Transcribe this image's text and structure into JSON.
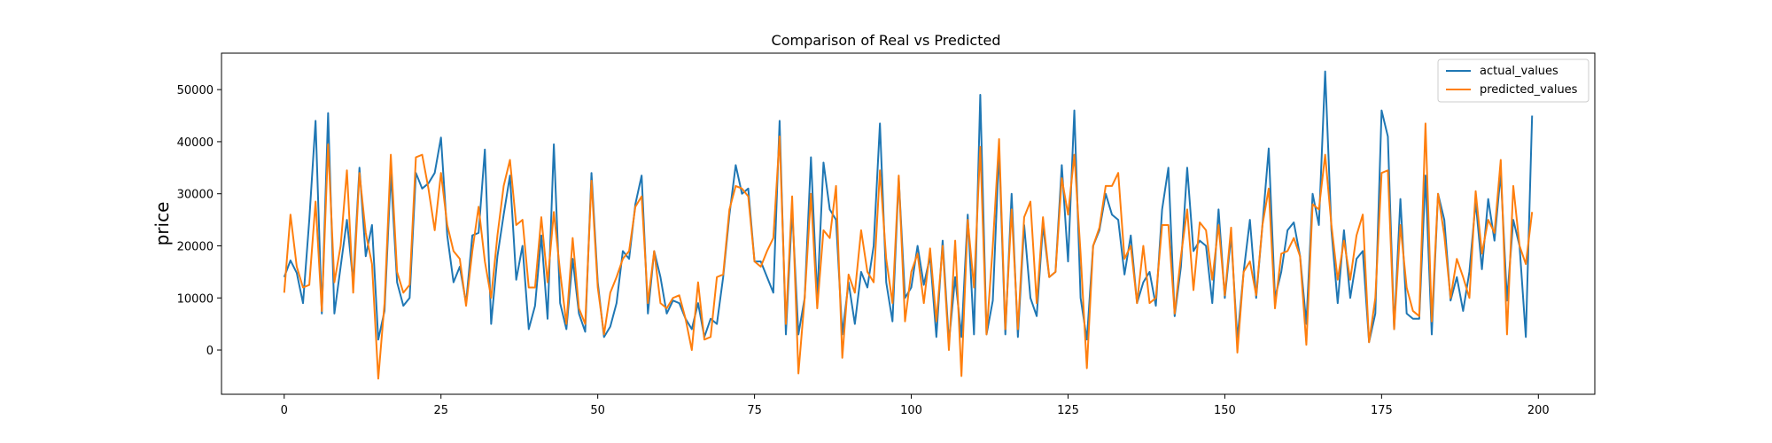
{
  "chart_data": {
    "type": "line",
    "title": "Comparison of Real vs Predicted",
    "xlabel": "",
    "ylabel": "price",
    "xlim": [
      -10,
      209
    ],
    "ylim": [
      -8500,
      57000
    ],
    "xticks": [
      0,
      25,
      50,
      75,
      100,
      125,
      150,
      175,
      200
    ],
    "yticks": [
      0,
      10000,
      20000,
      30000,
      40000,
      50000
    ],
    "grid": false,
    "legend_position": "top-right",
    "series": [
      {
        "name": "actual_values",
        "color": "#1f77b4",
        "values": [
          14000,
          17200,
          14800,
          9000,
          25000,
          44000,
          7000,
          45500,
          7000,
          16000,
          25000,
          13000,
          35000,
          18000,
          24000,
          2000,
          7500,
          34000,
          13000,
          8500,
          10000,
          34000,
          31000,
          32000,
          34000,
          40800,
          22000,
          13000,
          16000,
          9000,
          22000,
          22500,
          38500,
          5000,
          18000,
          26000,
          33500,
          13500,
          20000,
          4000,
          8500,
          22000,
          6000,
          39500,
          9000,
          4000,
          17500,
          7000,
          3500,
          34000,
          13000,
          2500,
          4500,
          9000,
          19000,
          17500,
          28000,
          33500,
          7000,
          19000,
          14000,
          7000,
          9500,
          9000,
          6000,
          4000,
          9000,
          2500,
          6000,
          5000,
          14000,
          26000,
          35500,
          30000,
          31000,
          17000,
          17000,
          14000,
          11000,
          44000,
          3000,
          27000,
          3000,
          10000,
          37000,
          10000,
          36000,
          27000,
          25000,
          3000,
          13000,
          5000,
          15000,
          12000,
          20000,
          43500,
          13000,
          5500,
          33000,
          10000,
          12000,
          20000,
          12500,
          18000,
          2500,
          21000,
          1500,
          14000,
          2500,
          26000,
          3000,
          49000,
          3000,
          9500,
          38500,
          3000,
          30000,
          2500,
          24000,
          10000,
          6500,
          24000,
          14000,
          15000,
          35500,
          17000,
          46000,
          10000,
          2000,
          20000,
          23000,
          30000,
          26000,
          25000,
          14500,
          22000,
          9000,
          13000,
          15000,
          8500,
          27000,
          35000,
          6500,
          16000,
          35000,
          19000,
          21000,
          20000,
          9000,
          27000,
          10000,
          22000,
          2000,
          15000,
          25000,
          10000,
          24000,
          38700,
          10000,
          15000,
          23000,
          24500,
          18000,
          5000,
          30000,
          24000,
          53500,
          23000,
          9000,
          23000,
          10000,
          17500,
          19000,
          1500,
          7000,
          46000,
          41000,
          4000,
          29000,
          7000,
          6000,
          6000,
          33500,
          3000,
          30000,
          25000,
          9500,
          14000,
          7500,
          15000,
          28500,
          15500,
          29000,
          21000,
          34000,
          9500,
          25000,
          20000,
          2500,
          45000
        ],
        "x_start": 0
      },
      {
        "name": "predicted_values",
        "color": "#ff7f0e",
        "values": [
          11000,
          26000,
          16000,
          12000,
          12500,
          28500,
          7500,
          39500,
          13000,
          20000,
          34500,
          11000,
          34000,
          22500,
          16500,
          -5500,
          9000,
          37500,
          15000,
          11000,
          12500,
          37000,
          37500,
          31000,
          23000,
          34000,
          24000,
          19000,
          17500,
          8500,
          19000,
          27500,
          17000,
          10000,
          22000,
          31500,
          36500,
          24000,
          25000,
          12000,
          12000,
          25500,
          13000,
          26500,
          15000,
          5000,
          21500,
          8000,
          5000,
          32500,
          12000,
          3000,
          11000,
          14000,
          17500,
          19000,
          27500,
          29500,
          9000,
          19000,
          9000,
          8000,
          10000,
          10500,
          6000,
          0,
          13000,
          2000,
          2500,
          14000,
          14500,
          27000,
          31500,
          31000,
          29500,
          17000,
          16000,
          19000,
          21500,
          41000,
          5000,
          29500,
          -4500,
          10000,
          30000,
          8000,
          23000,
          21500,
          31500,
          -1500,
          14500,
          11000,
          23000,
          15000,
          13000,
          34500,
          17500,
          9000,
          33500,
          5500,
          15000,
          18500,
          9000,
          19500,
          5500,
          20000,
          0,
          21000,
          -5000,
          25000,
          12000,
          39000,
          3000,
          20000,
          40500,
          4000,
          27000,
          4000,
          25500,
          28500,
          9000,
          25500,
          14000,
          15000,
          33000,
          26000,
          37500,
          18500,
          -3500,
          20000,
          23500,
          31500,
          31500,
          34000,
          17500,
          20000,
          9000,
          20000,
          9000,
          10000,
          24000,
          24000,
          7000,
          18000,
          27000,
          11500,
          24500,
          23000,
          13500,
          24000,
          10500,
          23500,
          -500,
          15000,
          17000,
          10500,
          24000,
          31000,
          8000,
          18500,
          19000,
          21500,
          18000,
          1000,
          28000,
          27000,
          37500,
          24000,
          13500,
          21000,
          13500,
          22000,
          26000,
          1500,
          10000,
          34000,
          34500,
          4000,
          24000,
          12000,
          7500,
          6500,
          43500,
          5500,
          30000,
          22000,
          10000,
          17500,
          14000,
          10000,
          30500,
          18500,
          25000,
          22500,
          36500,
          3000,
          31500,
          20000,
          16500,
          26500
        ],
        "x_start": 0
      }
    ]
  }
}
